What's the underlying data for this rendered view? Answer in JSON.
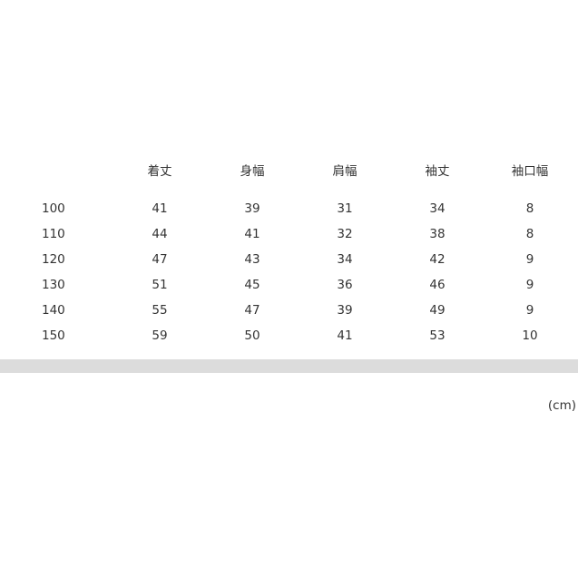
{
  "table": {
    "headers": [
      "着丈",
      "身幅",
      "肩幅",
      "袖丈",
      "袖口幅"
    ],
    "rows": [
      {
        "size": "100",
        "values": [
          "41",
          "39",
          "31",
          "34",
          "8"
        ]
      },
      {
        "size": "110",
        "values": [
          "44",
          "41",
          "32",
          "38",
          "8"
        ]
      },
      {
        "size": "120",
        "values": [
          "47",
          "43",
          "34",
          "42",
          "9"
        ]
      },
      {
        "size": "130",
        "values": [
          "51",
          "45",
          "36",
          "46",
          "9"
        ]
      },
      {
        "size": "140",
        "values": [
          "55",
          "47",
          "39",
          "49",
          "9"
        ]
      },
      {
        "size": "150",
        "values": [
          "59",
          "50",
          "41",
          "53",
          "10"
        ]
      }
    ]
  },
  "unit_label": "(cm)"
}
